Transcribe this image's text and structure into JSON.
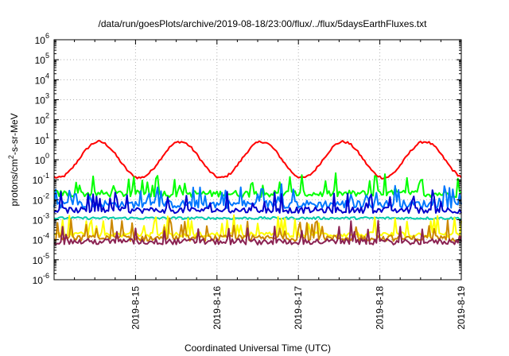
{
  "chart_data": {
    "type": "line",
    "title": "/data/run/goesPlots/archive/2019-08-18/23:00/flux/../flux/5daysEarthFluxes.txt",
    "xlabel": "Coordinated Universal Time (UTC)",
    "ylabel": "protons/cm²-s-sr-MeV",
    "yscale": "log",
    "xlim": [
      "2019-08-14",
      "2019-08-19"
    ],
    "ylim": [
      1e-06,
      1000000.0
    ],
    "grid": true,
    "x_tick_labels": [
      "2019-8-15",
      "2019-8-16",
      "2019-8-17",
      "2019-8-18",
      "2019-8-19"
    ],
    "y_tick_labels": [
      {
        "base": "10",
        "exp": "-6"
      },
      {
        "base": "10",
        "exp": "-5"
      },
      {
        "base": "10",
        "exp": "-4"
      },
      {
        "base": "10",
        "exp": "-3"
      },
      {
        "base": "10",
        "exp": "-2"
      },
      {
        "base": "10",
        "exp": "-1"
      },
      {
        "base": "10",
        "exp": "0"
      },
      {
        "base": "10",
        "exp": "1"
      },
      {
        "base": "10",
        "exp": "2"
      },
      {
        "base": "10",
        "exp": "3"
      },
      {
        "base": "10",
        "exp": "4"
      },
      {
        "base": "10",
        "exp": "5"
      },
      {
        "base": "10",
        "exp": "6"
      }
    ],
    "x_dates": [
      "2019-08-14",
      "2019-08-15",
      "2019-08-16",
      "2019-08-17",
      "2019-08-18",
      "2019-08-19"
    ],
    "series": [
      {
        "color": "#ff0000",
        "baseline": 1.0,
        "daily_amplitude_decades": 0.9,
        "daily_phase_day": 0.55,
        "noise_decades": 0.12,
        "spikes": false,
        "y_at_start": 1.0
      },
      {
        "color": "#00ff00",
        "baseline": 0.02,
        "daily_amplitude_decades": 0.0,
        "noise_decades": 0.35,
        "spikes": true
      },
      {
        "color": "#0077ff",
        "baseline": 0.006,
        "daily_amplitude_decades": 0.0,
        "noise_decades": 0.4,
        "spikes": true
      },
      {
        "color": "#0000cc",
        "baseline": 0.003,
        "daily_amplitude_decades": 0.0,
        "noise_decades": 0.3,
        "spikes": true
      },
      {
        "color": "#00ccaa",
        "baseline": 0.0012,
        "daily_amplitude_decades": 0.0,
        "noise_decades": 0.12,
        "spikes": false
      },
      {
        "color": "#ffff00",
        "baseline": 0.00018,
        "daily_amplitude_decades": 0.0,
        "noise_decades": 0.25,
        "spikes": true
      },
      {
        "color": "#cc8800",
        "baseline": 0.00012,
        "daily_amplitude_decades": 0.0,
        "noise_decades": 0.3,
        "spikes": true
      },
      {
        "color": "#8b2252",
        "baseline": 8e-05,
        "daily_amplitude_decades": 0.0,
        "noise_decades": 0.3,
        "spikes": true
      }
    ]
  }
}
